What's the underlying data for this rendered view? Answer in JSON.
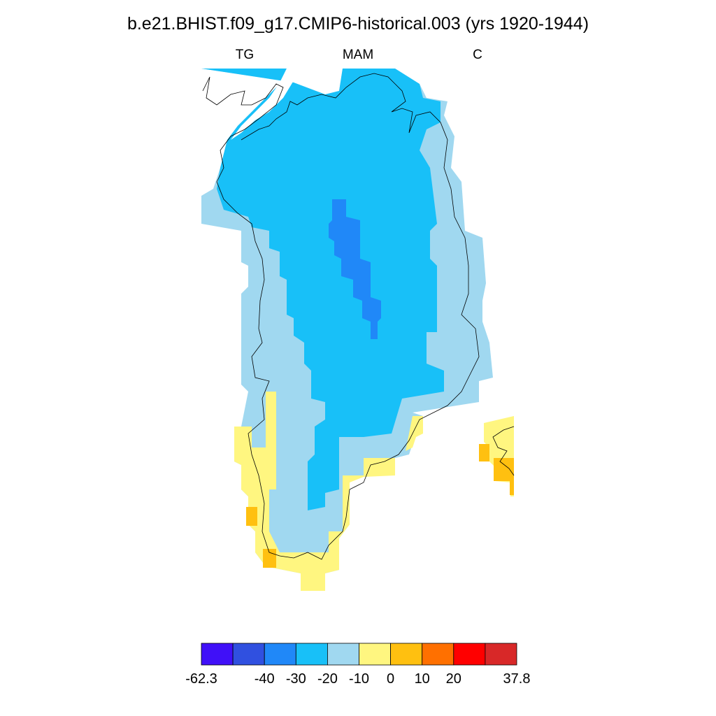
{
  "title": "b.e21.BHIST.f09_g17.CMIP6-historical.003 (yrs 1920-1944)",
  "subtitles": {
    "left": "TG",
    "center": "MAM",
    "right": "C"
  },
  "colorbar": {
    "colors": [
      "#4010F8",
      "#3050E0",
      "#2088F8",
      "#18C0F8",
      "#A0D8F0",
      "#FFF680",
      "#FFC010",
      "#FF7000",
      "#FF0000",
      "#D82828"
    ],
    "labels": [
      {
        "text": "-62.3",
        "at": 0
      },
      {
        "text": "-40",
        "at": 2
      },
      {
        "text": "-30",
        "at": 3
      },
      {
        "text": "-20",
        "at": 4
      },
      {
        "text": "-10",
        "at": 5
      },
      {
        "text": "0",
        "at": 6
      },
      {
        "text": "10",
        "at": 7
      },
      {
        "text": "20",
        "at": 8
      },
      {
        "text": "37.8",
        "at": 10
      }
    ],
    "min": -62.3,
    "max": 37.8
  },
  "map": {
    "region": "Greenland",
    "field": "TG",
    "season": "MAM",
    "units": "C"
  }
}
